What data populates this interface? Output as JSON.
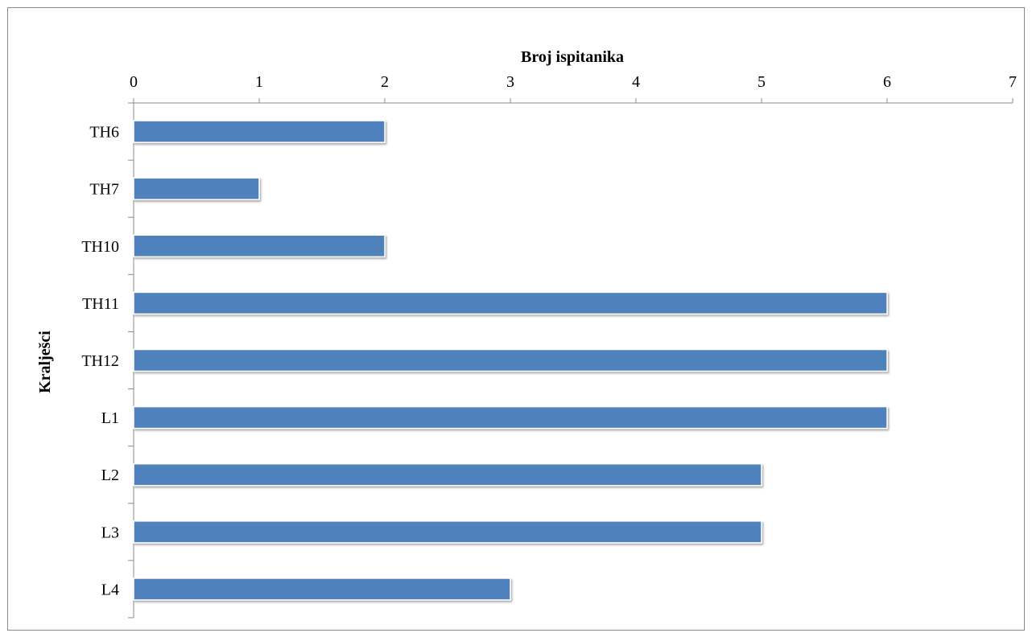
{
  "chart_data": {
    "type": "bar",
    "orientation": "horizontal",
    "xlabel": "Broj ispitanika",
    "ylabel": "Kralješci",
    "categories": [
      "TH6",
      "TH7",
      "TH10",
      "TH11",
      "TH12",
      "L1",
      "L2",
      "L3",
      "L4"
    ],
    "values": [
      2,
      1,
      2,
      6,
      6,
      6,
      5,
      5,
      3
    ],
    "xlim": [
      0,
      7
    ],
    "x_ticks": [
      "0",
      "1",
      "2",
      "3",
      "4",
      "5",
      "6",
      "7"
    ],
    "x_axis_position": "top",
    "grid": false,
    "legend": "none",
    "bar_color": "#4F81BD"
  }
}
